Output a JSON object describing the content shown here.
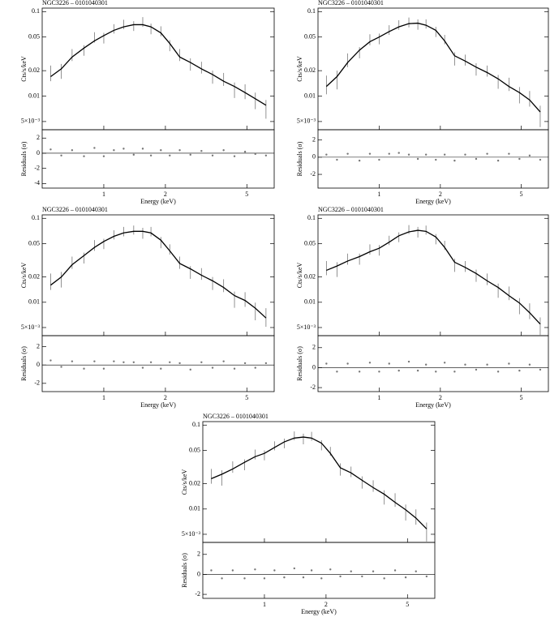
{
  "chart_data": [
    {
      "type": "spectrum",
      "title": "NGC3226 – 0101040301",
      "xlabel": "Energy (keV)",
      "ylabel": "Cts/s/keV",
      "residual_ylabel": "Residuals (σ)",
      "log_x": true,
      "log_y": true,
      "xlim": [
        0.5,
        6.8
      ],
      "xticks": [
        1,
        2,
        5
      ],
      "ylim": [
        0.004,
        0.11
      ],
      "yticks": [
        0.1,
        0.05,
        0.02,
        0.01,
        {
          "value": 0.005,
          "label": "5×10⁻³"
        }
      ],
      "x": [
        0.55,
        0.62,
        0.7,
        0.8,
        0.9,
        1.0,
        1.12,
        1.25,
        1.4,
        1.55,
        1.7,
        1.9,
        2.1,
        2.35,
        2.65,
        3.0,
        3.4,
        3.85,
        4.35,
        4.9,
        5.5,
        6.2
      ],
      "series": [
        {
          "color": "#777777",
          "values": [
            0.019,
            0.02,
            0.031,
            0.035,
            0.05,
            0.049,
            0.063,
            0.071,
            0.068,
            0.076,
            0.063,
            0.059,
            0.04,
            0.031,
            0.024,
            0.022,
            0.017,
            0.016,
            0.012,
            0.0115,
            0.009,
            0.0072
          ],
          "errors": [
            0.004,
            0.004,
            0.005,
            0.005,
            0.007,
            0.007,
            0.008,
            0.009,
            0.009,
            0.01,
            0.009,
            0.008,
            0.006,
            0.005,
            0.004,
            0.0035,
            0.003,
            0.0028,
            0.0025,
            0.0023,
            0.002,
            0.0018
          ]
        },
        {
          "color": "#000000",
          "values": [
            0.017,
            0.021,
            0.029,
            0.037,
            0.045,
            0.052,
            0.06,
            0.066,
            0.07,
            0.07,
            0.066,
            0.056,
            0.042,
            0.029,
            0.025,
            0.021,
            0.018,
            0.015,
            0.013,
            0.011,
            0.0093,
            0.0078
          ]
        }
      ],
      "residuals": {
        "color": "#777777",
        "ylim": [
          -4.6,
          3.1
        ],
        "yticks": [
          2,
          0,
          -2,
          -4
        ],
        "values": [
          0.5,
          -0.3,
          0.4,
          -0.4,
          0.7,
          -0.4,
          0.4,
          0.6,
          -0.2,
          0.6,
          -0.3,
          0.4,
          -0.3,
          0.4,
          -0.2,
          0.3,
          -0.3,
          0.4,
          -0.4,
          0.2,
          -0.1,
          -0.3
        ]
      }
    },
    {
      "type": "spectrum",
      "title": "NGC3226 – 0101040301",
      "xlabel": "Energy (keV)",
      "ylabel": "Cts/s/keV",
      "residual_ylabel": "Residuals (σ)",
      "log_x": true,
      "log_y": true,
      "xlim": [
        0.5,
        6.8
      ],
      "xticks": [
        1,
        2,
        5
      ],
      "ylim": [
        0.004,
        0.11
      ],
      "yticks": [
        0.1,
        0.05,
        0.02,
        0.01,
        {
          "value": 0.005,
          "label": "5×10⁻³"
        }
      ],
      "x": [
        0.55,
        0.62,
        0.7,
        0.8,
        0.9,
        1.0,
        1.12,
        1.25,
        1.4,
        1.55,
        1.7,
        1.9,
        2.1,
        2.35,
        2.65,
        3.0,
        3.4,
        3.85,
        4.35,
        4.9,
        5.5,
        6.2
      ],
      "series": [
        {
          "color": "#777777",
          "values": [
            0.014,
            0.016,
            0.027,
            0.033,
            0.047,
            0.048,
            0.061,
            0.07,
            0.075,
            0.071,
            0.072,
            0.058,
            0.047,
            0.028,
            0.027,
            0.021,
            0.02,
            0.015,
            0.014,
            0.0105,
            0.0095,
            0.006
          ],
          "errors": [
            0.0035,
            0.004,
            0.005,
            0.005,
            0.007,
            0.007,
            0.008,
            0.009,
            0.01,
            0.01,
            0.009,
            0.008,
            0.006,
            0.005,
            0.004,
            0.0035,
            0.003,
            0.0028,
            0.0025,
            0.0023,
            0.002,
            0.0017
          ]
        },
        {
          "color": "#000000",
          "values": [
            0.013,
            0.017,
            0.025,
            0.035,
            0.044,
            0.05,
            0.058,
            0.066,
            0.072,
            0.073,
            0.069,
            0.06,
            0.045,
            0.03,
            0.026,
            0.022,
            0.019,
            0.016,
            0.013,
            0.011,
            0.009,
            0.0065
          ]
        }
      ],
      "residuals": {
        "color": "#777777",
        "ylim": [
          -3.6,
          3.2
        ],
        "yticks": [
          2,
          0,
          -2
        ],
        "values": [
          0.3,
          -0.3,
          0.4,
          -0.4,
          0.4,
          -0.3,
          0.4,
          0.5,
          0.3,
          -0.2,
          0.3,
          -0.3,
          0.3,
          -0.4,
          0.3,
          -0.2,
          0.4,
          -0.4,
          0.4,
          -0.2,
          0.2,
          -0.3
        ]
      }
    },
    {
      "type": "spectrum",
      "title": "NGC3226 – 0101040301",
      "xlabel": "Energy (keV)",
      "ylabel": "Cts/s/keV",
      "residual_ylabel": "Residuals (σ)",
      "log_x": true,
      "log_y": true,
      "xlim": [
        0.5,
        6.8
      ],
      "xticks": [
        1,
        2,
        5
      ],
      "ylim": [
        0.004,
        0.11
      ],
      "yticks": [
        0.1,
        0.05,
        0.02,
        0.01,
        {
          "value": 0.005,
          "label": "5×10⁻³"
        }
      ],
      "x": [
        0.55,
        0.62,
        0.7,
        0.8,
        0.9,
        1.0,
        1.12,
        1.25,
        1.4,
        1.55,
        1.7,
        1.9,
        2.1,
        2.35,
        2.65,
        3.0,
        3.4,
        3.85,
        4.35,
        4.9,
        5.5,
        6.2
      ],
      "series": [
        {
          "color": "#777777",
          "values": [
            0.018,
            0.019,
            0.03,
            0.034,
            0.048,
            0.05,
            0.064,
            0.07,
            0.073,
            0.067,
            0.07,
            0.052,
            0.043,
            0.03,
            0.023,
            0.022,
            0.017,
            0.016,
            0.011,
            0.011,
            0.008,
            0.0068
          ],
          "errors": [
            0.004,
            0.004,
            0.005,
            0.005,
            0.007,
            0.007,
            0.008,
            0.009,
            0.009,
            0.01,
            0.009,
            0.008,
            0.006,
            0.005,
            0.004,
            0.0035,
            0.003,
            0.0028,
            0.0024,
            0.0022,
            0.0019,
            0.0017
          ]
        },
        {
          "color": "#000000",
          "values": [
            0.016,
            0.02,
            0.028,
            0.036,
            0.045,
            0.053,
            0.061,
            0.067,
            0.07,
            0.07,
            0.067,
            0.055,
            0.041,
            0.029,
            0.025,
            0.021,
            0.018,
            0.015,
            0.012,
            0.0105,
            0.0085,
            0.0065
          ]
        }
      ],
      "residuals": {
        "color": "#777777",
        "ylim": [
          -2.9,
          3.2
        ],
        "yticks": [
          2,
          0,
          -2
        ],
        "values": [
          0.5,
          -0.2,
          0.4,
          -0.4,
          0.4,
          -0.4,
          0.4,
          0.3,
          0.3,
          -0.3,
          0.3,
          -0.4,
          0.3,
          0.2,
          -0.5,
          0.3,
          -0.3,
          0.4,
          -0.4,
          0.2,
          -0.3,
          0.2
        ]
      }
    },
    {
      "type": "spectrum",
      "title": "NGC3226 – 0101040301",
      "xlabel": "Energy (keV)",
      "ylabel": "Cts/s/keV",
      "residual_ylabel": "Residuals (σ)",
      "log_x": true,
      "log_y": true,
      "xlim": [
        0.5,
        6.8
      ],
      "xticks": [
        1,
        2,
        5
      ],
      "ylim": [
        0.004,
        0.11
      ],
      "yticks": [
        0.1,
        0.05,
        0.02,
        0.01,
        {
          "value": 0.005,
          "label": "5×10⁻³"
        }
      ],
      "x": [
        0.55,
        0.62,
        0.7,
        0.8,
        0.9,
        1.0,
        1.12,
        1.25,
        1.4,
        1.55,
        1.7,
        1.9,
        2.1,
        2.35,
        2.65,
        3.0,
        3.4,
        3.85,
        4.35,
        4.9,
        5.5,
        6.2
      ],
      "series": [
        {
          "color": "#777777",
          "values": [
            0.026,
            0.025,
            0.033,
            0.033,
            0.043,
            0.042,
            0.055,
            0.06,
            0.074,
            0.069,
            0.073,
            0.057,
            0.048,
            0.028,
            0.027,
            0.021,
            0.019,
            0.014,
            0.013,
            0.0092,
            0.008,
            0.0052
          ],
          "errors": [
            0.005,
            0.005,
            0.005,
            0.005,
            0.006,
            0.006,
            0.007,
            0.008,
            0.009,
            0.01,
            0.009,
            0.008,
            0.006,
            0.005,
            0.004,
            0.0035,
            0.003,
            0.0027,
            0.0024,
            0.002,
            0.0017,
            0.0014
          ]
        },
        {
          "color": "#000000",
          "values": [
            0.024,
            0.027,
            0.031,
            0.035,
            0.04,
            0.044,
            0.052,
            0.062,
            0.069,
            0.072,
            0.07,
            0.06,
            0.045,
            0.03,
            0.026,
            0.022,
            0.018,
            0.015,
            0.012,
            0.0098,
            0.0075,
            0.0055
          ]
        }
      ],
      "residuals": {
        "color": "#777777",
        "ylim": [
          -2.4,
          3.2
        ],
        "yticks": [
          2,
          0,
          -2
        ],
        "values": [
          0.4,
          -0.4,
          0.4,
          -0.4,
          0.5,
          -0.4,
          0.4,
          -0.3,
          0.6,
          -0.3,
          0.3,
          -0.4,
          0.5,
          -0.4,
          0.3,
          -0.2,
          0.3,
          -0.4,
          0.4,
          -0.3,
          0.3,
          -0.2
        ]
      }
    },
    {
      "type": "spectrum",
      "title": "NGC3226 – 0101040301",
      "xlabel": "Energy (keV)",
      "ylabel": "Cts/s/keV",
      "residual_ylabel": "Residuals (σ)",
      "log_x": true,
      "log_y": true,
      "xlim": [
        0.5,
        6.8
      ],
      "xticks": [
        1,
        2,
        5
      ],
      "ylim": [
        0.004,
        0.11
      ],
      "yticks": [
        0.1,
        0.05,
        0.02,
        0.01,
        {
          "value": 0.005,
          "label": "5×10⁻³"
        }
      ],
      "x": [
        0.55,
        0.62,
        0.7,
        0.8,
        0.9,
        1.0,
        1.12,
        1.25,
        1.4,
        1.55,
        1.7,
        1.9,
        2.1,
        2.35,
        2.65,
        3.0,
        3.4,
        3.85,
        4.35,
        4.9,
        5.5,
        6.2
      ],
      "series": [
        {
          "color": "#777777",
          "values": [
            0.025,
            0.024,
            0.032,
            0.034,
            0.045,
            0.044,
            0.057,
            0.061,
            0.075,
            0.069,
            0.074,
            0.058,
            0.049,
            0.03,
            0.028,
            0.021,
            0.019,
            0.014,
            0.013,
            0.0093,
            0.0082,
            0.0055
          ],
          "errors": [
            0.005,
            0.005,
            0.005,
            0.005,
            0.006,
            0.006,
            0.007,
            0.008,
            0.009,
            0.01,
            0.009,
            0.008,
            0.006,
            0.005,
            0.004,
            0.0035,
            0.003,
            0.0027,
            0.0024,
            0.002,
            0.0017,
            0.0014
          ]
        },
        {
          "color": "#000000",
          "values": [
            0.023,
            0.026,
            0.03,
            0.036,
            0.042,
            0.046,
            0.054,
            0.063,
            0.07,
            0.072,
            0.07,
            0.061,
            0.046,
            0.031,
            0.027,
            0.022,
            0.018,
            0.015,
            0.012,
            0.0098,
            0.0078,
            0.0058
          ]
        }
      ],
      "residuals": {
        "color": "#777777",
        "ylim": [
          -2.4,
          3.2
        ],
        "yticks": [
          2,
          0,
          -2
        ],
        "values": [
          0.4,
          -0.4,
          0.4,
          -0.4,
          0.5,
          -0.4,
          0.4,
          -0.3,
          0.6,
          -0.3,
          0.4,
          -0.4,
          0.5,
          -0.2,
          0.3,
          -0.2,
          0.3,
          -0.4,
          0.4,
          -0.3,
          0.3,
          -0.2
        ]
      }
    }
  ]
}
